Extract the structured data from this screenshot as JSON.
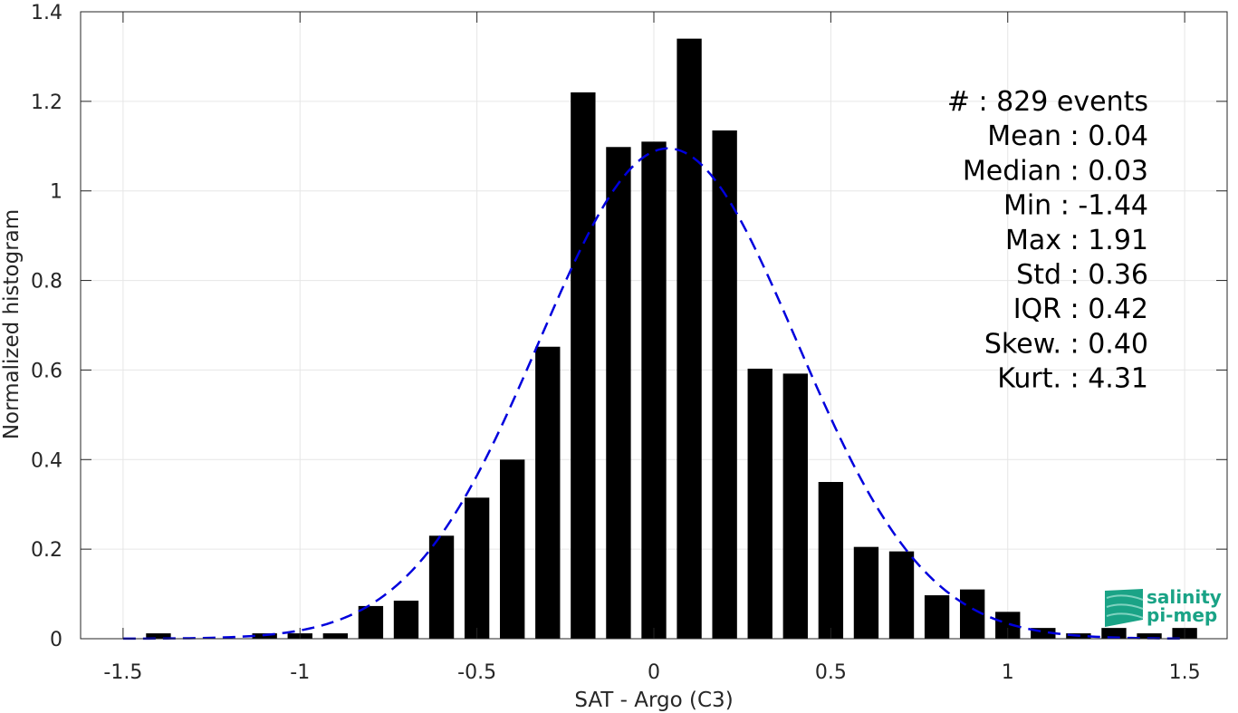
{
  "chart_data": {
    "type": "bar",
    "xlabel": "SAT - Argo (C3)",
    "ylabel": "Normalized histogram",
    "xlim": [
      -1.62,
      1.62
    ],
    "ylim": [
      0,
      1.4
    ],
    "grid": true,
    "x_ticks": [
      "-1.5",
      "-1",
      "-0.5",
      "0",
      "0.5",
      "1",
      "1.5"
    ],
    "x_tick_values": [
      -1.5,
      -1,
      -0.5,
      0,
      0.5,
      1,
      1.5
    ],
    "y_ticks": [
      "0",
      "0.2",
      "0.4",
      "0.6",
      "0.8",
      "1",
      "1.2",
      "1.4"
    ],
    "y_tick_values": [
      0,
      0.2,
      0.4,
      0.6,
      0.8,
      1.0,
      1.2,
      1.4
    ],
    "bin_width": 0.1,
    "bar_width_fraction": 0.7,
    "bars": [
      {
        "x": -1.4,
        "y": 0.012
      },
      {
        "x": -1.1,
        "y": 0.012
      },
      {
        "x": -1.0,
        "y": 0.012
      },
      {
        "x": -0.9,
        "y": 0.012
      },
      {
        "x": -0.8,
        "y": 0.073
      },
      {
        "x": -0.7,
        "y": 0.085
      },
      {
        "x": -0.6,
        "y": 0.23
      },
      {
        "x": -0.5,
        "y": 0.315
      },
      {
        "x": -0.4,
        "y": 0.4
      },
      {
        "x": -0.3,
        "y": 0.652
      },
      {
        "x": -0.2,
        "y": 1.22
      },
      {
        "x": -0.1,
        "y": 1.098
      },
      {
        "x": 0.0,
        "y": 1.11
      },
      {
        "x": 0.1,
        "y": 1.34
      },
      {
        "x": 0.2,
        "y": 1.135
      },
      {
        "x": 0.3,
        "y": 0.603
      },
      {
        "x": 0.4,
        "y": 0.592
      },
      {
        "x": 0.5,
        "y": 0.35
      },
      {
        "x": 0.6,
        "y": 0.205
      },
      {
        "x": 0.7,
        "y": 0.195
      },
      {
        "x": 0.8,
        "y": 0.097
      },
      {
        "x": 0.9,
        "y": 0.11
      },
      {
        "x": 1.0,
        "y": 0.06
      },
      {
        "x": 1.1,
        "y": 0.024
      },
      {
        "x": 1.2,
        "y": 0.012
      },
      {
        "x": 1.3,
        "y": 0.024
      },
      {
        "x": 1.4,
        "y": 0.012
      },
      {
        "x": 1.5,
        "y": 0.024
      }
    ],
    "fit_curve": {
      "type": "gaussian",
      "mean": 0.04,
      "std": 0.364,
      "peak": 1.095,
      "x_range": [
        -1.5,
        1.5
      ],
      "color": "#0000dd",
      "style": "dashed"
    },
    "bar_color": "#000000"
  },
  "stats": {
    "lines": [
      "#  : 829 events",
      "Mean : 0.04",
      "Median : 0.03",
      "Min : -1.44",
      "Max : 1.91",
      "Std : 0.36",
      "IQR : 0.42",
      "Skew. : 0.40",
      "Kurt. : 4.31"
    ]
  },
  "logo": {
    "line1": "salinity",
    "line2": "pi-mep",
    "color": "#1aa386"
  }
}
